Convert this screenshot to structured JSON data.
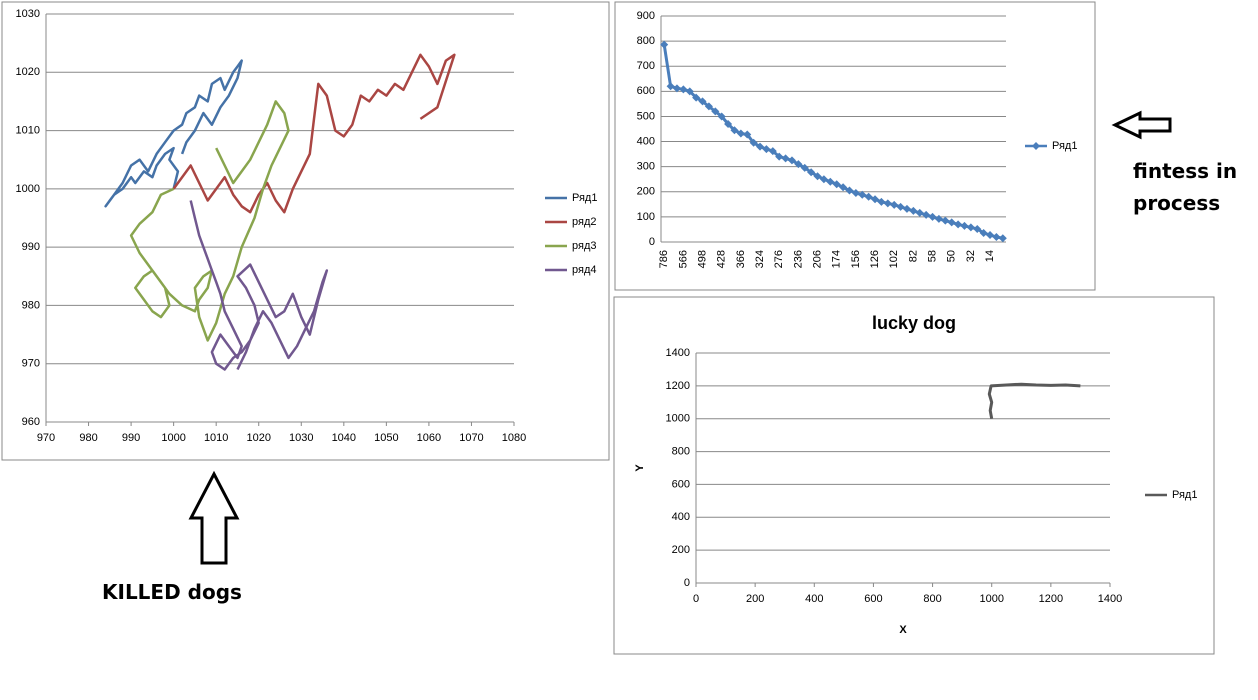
{
  "chart_data": [
    {
      "type": "scatter",
      "xlim": [
        970,
        1080
      ],
      "xticks": [
        970,
        980,
        990,
        1000,
        1010,
        1020,
        1030,
        1040,
        1050,
        1060,
        1070,
        1080
      ],
      "ylim": [
        960,
        1030
      ],
      "yticks": [
        960,
        970,
        980,
        990,
        1000,
        1010,
        1020,
        1030
      ],
      "grid": true,
      "legend": "right",
      "series": [
        {
          "name": "Ряд1",
          "color": "#4572a7",
          "x": [
            1000,
            1001,
            999,
            1000,
            998,
            996,
            995,
            993,
            991,
            990,
            988,
            986,
            985,
            984,
            986,
            988,
            990,
            992,
            994,
            996,
            998,
            1000,
            1002,
            1003,
            1005,
            1006,
            1008,
            1009,
            1011,
            1012,
            1014,
            1015,
            1016,
            1015,
            1013,
            1011,
            1009,
            1007,
            1005,
            1003,
            1002
          ],
          "values": [
            1000,
            1003,
            1005,
            1007,
            1006,
            1004,
            1002,
            1003,
            1001,
            1002,
            1000,
            999,
            998,
            997,
            999,
            1001,
            1004,
            1005,
            1003,
            1006,
            1008,
            1010,
            1011,
            1013,
            1014,
            1016,
            1015,
            1018,
            1019,
            1017,
            1020,
            1021,
            1022,
            1019,
            1016,
            1014,
            1011,
            1013,
            1010,
            1008,
            1006
          ]
        },
        {
          "name": "ряд2",
          "color": "#aa4643",
          "x": [
            1000,
            1004,
            1006,
            1008,
            1010,
            1012,
            1014,
            1016,
            1018,
            1020,
            1022,
            1024,
            1026,
            1028,
            1030,
            1032,
            1033,
            1034,
            1036,
            1038,
            1040,
            1042,
            1044,
            1046,
            1048,
            1050,
            1052,
            1054,
            1056,
            1058,
            1060,
            1062,
            1064,
            1066,
            1062,
            1058
          ],
          "values": [
            1000,
            1004,
            1001,
            998,
            1000,
            1002,
            999,
            997,
            996,
            999,
            1001,
            998,
            996,
            1000,
            1003,
            1006,
            1012,
            1018,
            1016,
            1010,
            1009,
            1011,
            1016,
            1015,
            1017,
            1016,
            1018,
            1017,
            1020,
            1023,
            1021,
            1018,
            1022,
            1023,
            1014,
            1012
          ]
        },
        {
          "name": "ряд3",
          "color": "#89a54e",
          "x": [
            1000,
            997,
            995,
            992,
            990,
            992,
            994,
            996,
            998,
            999,
            997,
            995,
            993,
            991,
            993,
            995,
            997,
            999,
            1002,
            1005,
            1006,
            1008,
            1009,
            1007,
            1005,
            1006,
            1008,
            1010,
            1012,
            1014,
            1016,
            1019,
            1021,
            1023,
            1025,
            1027,
            1026,
            1024,
            1022,
            1020,
            1018,
            1016,
            1014,
            1012,
            1010
          ],
          "values": [
            1000,
            999,
            996,
            994,
            992,
            989,
            987,
            985,
            983,
            980,
            978,
            979,
            981,
            983,
            985,
            986,
            984,
            982,
            980,
            979,
            981,
            983,
            986,
            985,
            983,
            978,
            974,
            977,
            982,
            985,
            990,
            995,
            1000,
            1004,
            1007,
            1010,
            1013,
            1015,
            1011,
            1008,
            1005,
            1003,
            1001,
            1004,
            1007
          ]
        },
        {
          "name": "ряд4",
          "color": "#71588f",
          "x": [
            1004,
            1005,
            1006,
            1007,
            1008,
            1009,
            1010,
            1011,
            1012,
            1014,
            1016,
            1015,
            1013,
            1011,
            1009,
            1010,
            1012,
            1014,
            1016,
            1018,
            1020,
            1019,
            1017,
            1015,
            1018,
            1020,
            1022,
            1024,
            1026,
            1028,
            1030,
            1032,
            1034,
            1036,
            1035,
            1033,
            1031,
            1029,
            1027,
            1025,
            1023,
            1021,
            1019,
            1017,
            1015
          ],
          "values": [
            998,
            995,
            992,
            990,
            988,
            986,
            984,
            982,
            979,
            976,
            973,
            971,
            973,
            975,
            972,
            970,
            969,
            971,
            972,
            974,
            977,
            980,
            983,
            985,
            987,
            984,
            981,
            978,
            979,
            982,
            978,
            975,
            981,
            986,
            984,
            979,
            976,
            973,
            971,
            974,
            977,
            979,
            976,
            972,
            969
          ]
        }
      ]
    },
    {
      "type": "line",
      "ylim": [
        0,
        900
      ],
      "yticks": [
        0,
        100,
        200,
        300,
        400,
        500,
        600,
        700,
        800,
        900
      ],
      "grid": true,
      "legend": "right",
      "categories": [
        "786",
        null,
        null,
        "566",
        null,
        null,
        "498",
        null,
        null,
        "428",
        null,
        null,
        "366",
        null,
        null,
        "324",
        null,
        null,
        "276",
        null,
        null,
        "236",
        null,
        null,
        "206",
        null,
        null,
        "174",
        null,
        null,
        "156",
        null,
        null,
        "126",
        null,
        null,
        "102",
        null,
        null,
        "82",
        null,
        null,
        "58",
        null,
        null,
        "50",
        null,
        null,
        "32",
        null,
        null,
        "14",
        null,
        null
      ],
      "series": [
        {
          "name": "Ряд1",
          "color": "#4a7ebb",
          "values": [
            786,
            620,
            612,
            608,
            600,
            575,
            560,
            540,
            520,
            500,
            470,
            445,
            432,
            428,
            395,
            380,
            370,
            362,
            340,
            333,
            325,
            310,
            295,
            278,
            262,
            250,
            240,
            230,
            218,
            205,
            195,
            188,
            180,
            170,
            160,
            154,
            148,
            140,
            132,
            124,
            116,
            108,
            100,
            92,
            85,
            78,
            70,
            64,
            58,
            52,
            36,
            28,
            20,
            15
          ]
        }
      ]
    },
    {
      "type": "scatter",
      "title": "lucky dog",
      "xlabel": "X",
      "ylabel": "Y",
      "xlim": [
        0,
        1400
      ],
      "xticks": [
        0,
        200,
        400,
        600,
        800,
        1000,
        1200,
        1400
      ],
      "ylim": [
        0,
        1400
      ],
      "yticks": [
        0,
        200,
        400,
        600,
        800,
        1000,
        1200,
        1400
      ],
      "grid": true,
      "legend": "right",
      "series": [
        {
          "name": "Ряд1",
          "color": "#595959",
          "x": [
            1000,
            995,
            1000,
            992,
            998,
            1050,
            1100,
            1150,
            1200,
            1250,
            1300
          ],
          "values": [
            1000,
            1050,
            1100,
            1150,
            1200,
            1205,
            1210,
            1205,
            1203,
            1205,
            1200
          ]
        }
      ]
    }
  ],
  "annotations": [
    "fintess in process",
    "KILLED dogs"
  ]
}
